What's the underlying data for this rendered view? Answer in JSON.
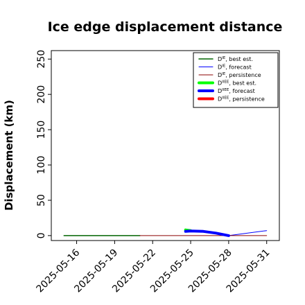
{
  "chart_data": {
    "type": "line",
    "title": "Ice edge displacement distance",
    "ylabel": "Displacement (km)",
    "xlabel": "",
    "ylim": [
      -7,
      262
    ],
    "yticks": [
      "0",
      "50",
      "100",
      "150",
      "200",
      "250"
    ],
    "ytick_values": [
      0,
      50,
      100,
      150,
      200,
      250
    ],
    "xlim": [
      "2025-05-14",
      "2025-06-01"
    ],
    "xticks": [
      {
        "label": "2025-05-16",
        "date": "2025-05-16",
        "color": "#000000"
      },
      {
        "label": "2025-05-19",
        "date": "2025-05-19",
        "color": "#000000"
      },
      {
        "label": "2025-05-22",
        "date": "2025-05-22",
        "color": "#008000"
      },
      {
        "label": "2025-05-25",
        "date": "2025-05-25",
        "color": "#000000"
      },
      {
        "label": "2025-05-28",
        "date": "2025-05-28",
        "color": "#000000"
      },
      {
        "label": "2025-05-31",
        "date": "2025-05-31",
        "color": "#000000"
      }
    ],
    "legend_position": "top-right",
    "series": [
      {
        "name": "D^IE, best est.",
        "sym": "IE",
        "suffix": ", best est.",
        "color": "#006400",
        "width": 1.5,
        "x": [
          "2025-05-15",
          "2025-05-21"
        ],
        "y": [
          0,
          0
        ]
      },
      {
        "name": "D^IE, forecast",
        "sym": "IE",
        "suffix": ", forecast",
        "color": "#0000ff",
        "width": 1,
        "x": [
          "2025-05-28",
          "2025-05-31"
        ],
        "y": [
          0,
          7
        ]
      },
      {
        "name": "D^IE, persistence",
        "sym": "IE",
        "suffix": ", persistence",
        "color": "#8b0000",
        "width": 1,
        "x": [
          "2025-05-21",
          "2025-05-31"
        ],
        "y": [
          0,
          0
        ]
      },
      {
        "name": "D^IIEE, best est.",
        "sym": "IIEE",
        "suffix": ", best est.",
        "color": "#00ff00",
        "width": 4,
        "x": [
          "2025-05-24.6",
          "2025-05-25"
        ],
        "y": [
          8,
          7
        ]
      },
      {
        "name": "D^IIEE, forecast",
        "sym": "IIEE",
        "suffix": ", forecast",
        "color": "#0000ff",
        "width": 4,
        "x": [
          "2025-05-24.6",
          "2025-05-25",
          "2025-05-26",
          "2025-05-27",
          "2025-05-28"
        ],
        "y": [
          6,
          6.5,
          6,
          3.5,
          0
        ]
      },
      {
        "name": "D^IIEE, persistence",
        "sym": "IIEE",
        "suffix": ", persistence",
        "color": "#ff0000",
        "width": 4,
        "x": [],
        "y": []
      }
    ]
  }
}
